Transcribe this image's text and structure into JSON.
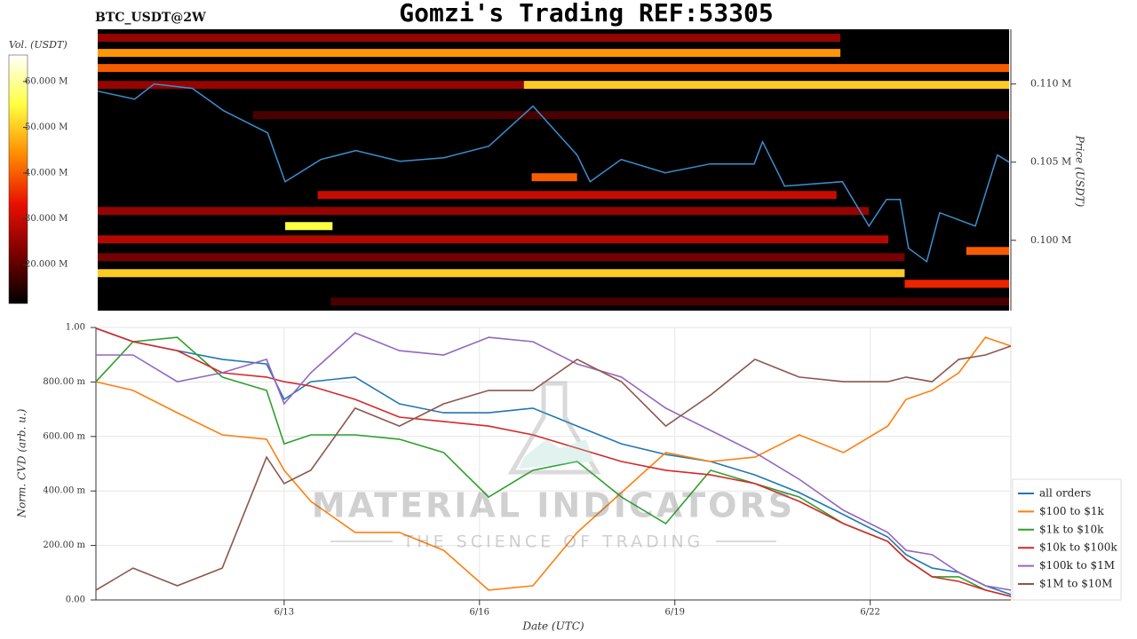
{
  "title": "Gomzi's Trading REF:53305",
  "watermark": {
    "title": "MATERIAL INDICATORS",
    "subtitle": "THE SCIENCE OF TRADING"
  },
  "chart_data": [
    {
      "type": "heatmap",
      "title": "BTC_USDT@2W",
      "ylabel": "Price (USDT)",
      "color_label": "Vol. (USDT)",
      "xlim": [
        10.11,
        24.16
      ],
      "ylim": [
        95500,
        113500
      ],
      "yticks": [
        {
          "value": 100000,
          "label": "0.100 M"
        },
        {
          "value": 105000,
          "label": "0.105 M"
        },
        {
          "value": 110000,
          "label": "0.110 M"
        }
      ],
      "clim": [
        11500000,
        65800000
      ],
      "cticks": [
        {
          "value": 20000000,
          "label": "20.000 M"
        },
        {
          "value": 30000000,
          "label": "30.000 M"
        },
        {
          "value": 40000000,
          "label": "40.000 M"
        },
        {
          "value": 50000000,
          "label": "50.000 M"
        },
        {
          "value": 60000000,
          "label": "60.000 M"
        }
      ],
      "colorscale": [
        "#000000",
        "#7a0000",
        "#e81000",
        "#ff8c00",
        "#ffff40",
        "#ffffff"
      ],
      "bands": [
        {
          "price": 112955,
          "start": 10.11,
          "end": 21.56,
          "volume": 25000000
        },
        {
          "price": 111989,
          "start": 10.11,
          "end": 21.56,
          "volume": 45000000
        },
        {
          "price": 111023,
          "start": 10.11,
          "end": 24.16,
          "volume": 40000000
        },
        {
          "price": 109943,
          "start": 10.11,
          "end": 16.68,
          "volume": 25000000
        },
        {
          "price": 109943,
          "start": 16.68,
          "end": 24.16,
          "volume": 50000000
        },
        {
          "price": 108011,
          "start": 12.5,
          "end": 24.16,
          "volume": 18000000
        },
        {
          "price": 104034,
          "start": 16.8,
          "end": 17.5,
          "volume": 40000000
        },
        {
          "price": 102898,
          "start": 13.5,
          "end": 21.5,
          "volume": 30000000
        },
        {
          "price": 101875,
          "start": 10.11,
          "end": 22.0,
          "volume": 25000000
        },
        {
          "price": 100909,
          "start": 13.0,
          "end": 13.73,
          "volume": 55000000
        },
        {
          "price": 100057,
          "start": 10.11,
          "end": 22.3,
          "volume": 28000000
        },
        {
          "price": 99318,
          "start": 23.5,
          "end": 24.16,
          "volume": 40000000
        },
        {
          "price": 98920,
          "start": 10.11,
          "end": 22.55,
          "volume": 22000000
        },
        {
          "price": 97898,
          "start": 10.11,
          "end": 22.55,
          "volume": 50000000
        },
        {
          "price": 97216,
          "start": 22.55,
          "end": 24.16,
          "volume": 35000000
        },
        {
          "price": 96080,
          "start": 13.7,
          "end": 24.16,
          "volume": 18000000
        }
      ],
      "color": "#3a8fd0",
      "x": [
        10.11,
        10.68,
        10.98,
        11.57,
        12.05,
        12.73,
        13.0,
        13.55,
        14.09,
        14.77,
        15.45,
        16.14,
        16.82,
        17.5,
        17.7,
        18.18,
        18.86,
        19.55,
        20.23,
        20.36,
        20.7,
        21.59,
        22.0,
        22.27,
        22.48,
        22.61,
        22.89,
        23.09,
        23.64,
        23.98,
        24.16
      ],
      "values": [
        109545,
        109034,
        110000,
        109716,
        108295,
        106875,
        103750,
        105170,
        105739,
        105057,
        105284,
        106023,
        108580,
        105455,
        103750,
        105170,
        104318,
        104886,
        104886,
        106307,
        103466,
        103750,
        100909,
        102614,
        102614,
        99489,
        98636,
        101761,
        100909,
        105455,
        105000
      ]
    },
    {
      "type": "line",
      "ylabel": "Norm. CVD (arb. u.)",
      "xlabel": "Date (UTC)",
      "grid": true,
      "legend": "right",
      "xlim": [
        10.11,
        24.16
      ],
      "ylim": [
        0,
        1
      ],
      "xticks": [
        {
          "value": 13,
          "label": "6/13"
        },
        {
          "value": 16,
          "label": "6/16"
        },
        {
          "value": 19,
          "label": "6/19"
        },
        {
          "value": 22,
          "label": "6/22"
        }
      ],
      "yticks": [
        {
          "value": 0,
          "label": "0.00"
        },
        {
          "value": 0.2,
          "label": "200.00 m"
        },
        {
          "value": 0.4,
          "label": "400.00 m"
        },
        {
          "value": 0.6,
          "label": "600.00 m"
        },
        {
          "value": 0.8,
          "label": "800.00 m"
        },
        {
          "value": 1,
          "label": "1.00"
        }
      ],
      "x": [
        10.11,
        10.68,
        11.36,
        12.05,
        12.73,
        13.0,
        13.41,
        14.09,
        14.77,
        15.45,
        16.14,
        16.82,
        17.5,
        18.18,
        18.86,
        19.55,
        20.23,
        20.91,
        21.59,
        22.27,
        22.55,
        22.95,
        23.36,
        23.77,
        24.16
      ],
      "series": [
        {
          "name": "all orders",
          "color": "#1f77b4",
          "values": [
            0.997,
            0.948,
            0.915,
            0.883,
            0.866,
            0.736,
            0.801,
            0.818,
            0.72,
            0.687,
            0.687,
            0.704,
            0.638,
            0.573,
            0.534,
            0.508,
            0.459,
            0.394,
            0.313,
            0.231,
            0.166,
            0.117,
            0.101,
            0.052,
            0.02
          ]
        },
        {
          "name": "$100 to $1k",
          "color": "#ff7f0e",
          "values": [
            0.801,
            0.769,
            0.687,
            0.606,
            0.59,
            0.476,
            0.362,
            0.248,
            0.248,
            0.182,
            0.036,
            0.052,
            0.248,
            0.394,
            0.541,
            0.508,
            0.524,
            0.606,
            0.541,
            0.638,
            0.736,
            0.769,
            0.834,
            0.964,
            0.932
          ]
        },
        {
          "name": "$1k to $10k",
          "color": "#2ca02c",
          "values": [
            0.801,
            0.948,
            0.964,
            0.818,
            0.769,
            0.573,
            0.606,
            0.606,
            0.59,
            0.541,
            0.378,
            0.476,
            0.508,
            0.378,
            0.28,
            0.476,
            0.427,
            0.378,
            0.28,
            0.215,
            0.15,
            0.085,
            0.085,
            0.036,
            0.013
          ]
        },
        {
          "name": "$10k to $100k",
          "color": "#d62728",
          "values": [
            0.997,
            0.948,
            0.915,
            0.834,
            0.818,
            0.801,
            0.785,
            0.736,
            0.671,
            0.655,
            0.638,
            0.606,
            0.557,
            0.508,
            0.476,
            0.459,
            0.427,
            0.362,
            0.28,
            0.215,
            0.15,
            0.085,
            0.068,
            0.036,
            0.013
          ]
        },
        {
          "name": "$100k to $1M",
          "color": "#9467bd",
          "values": [
            0.899,
            0.899,
            0.801,
            0.834,
            0.883,
            0.72,
            0.834,
            0.98,
            0.915,
            0.899,
            0.964,
            0.948,
            0.866,
            0.818,
            0.704,
            0.622,
            0.541,
            0.443,
            0.329,
            0.248,
            0.182,
            0.166,
            0.101,
            0.052,
            0.036
          ]
        },
        {
          "name": "$1M to $10M",
          "color": "#8c564b",
          "values": [
            0.036,
            0.117,
            0.052,
            0.117,
            0.524,
            0.427,
            0.476,
            0.704,
            0.638,
            0.72,
            0.769,
            0.769,
            0.883,
            0.801,
            0.638,
            0.752,
            0.883,
            0.818,
            0.801,
            0.801,
            0.818,
            0.801,
            0.883,
            0.899,
            0.932
          ]
        }
      ]
    }
  ]
}
